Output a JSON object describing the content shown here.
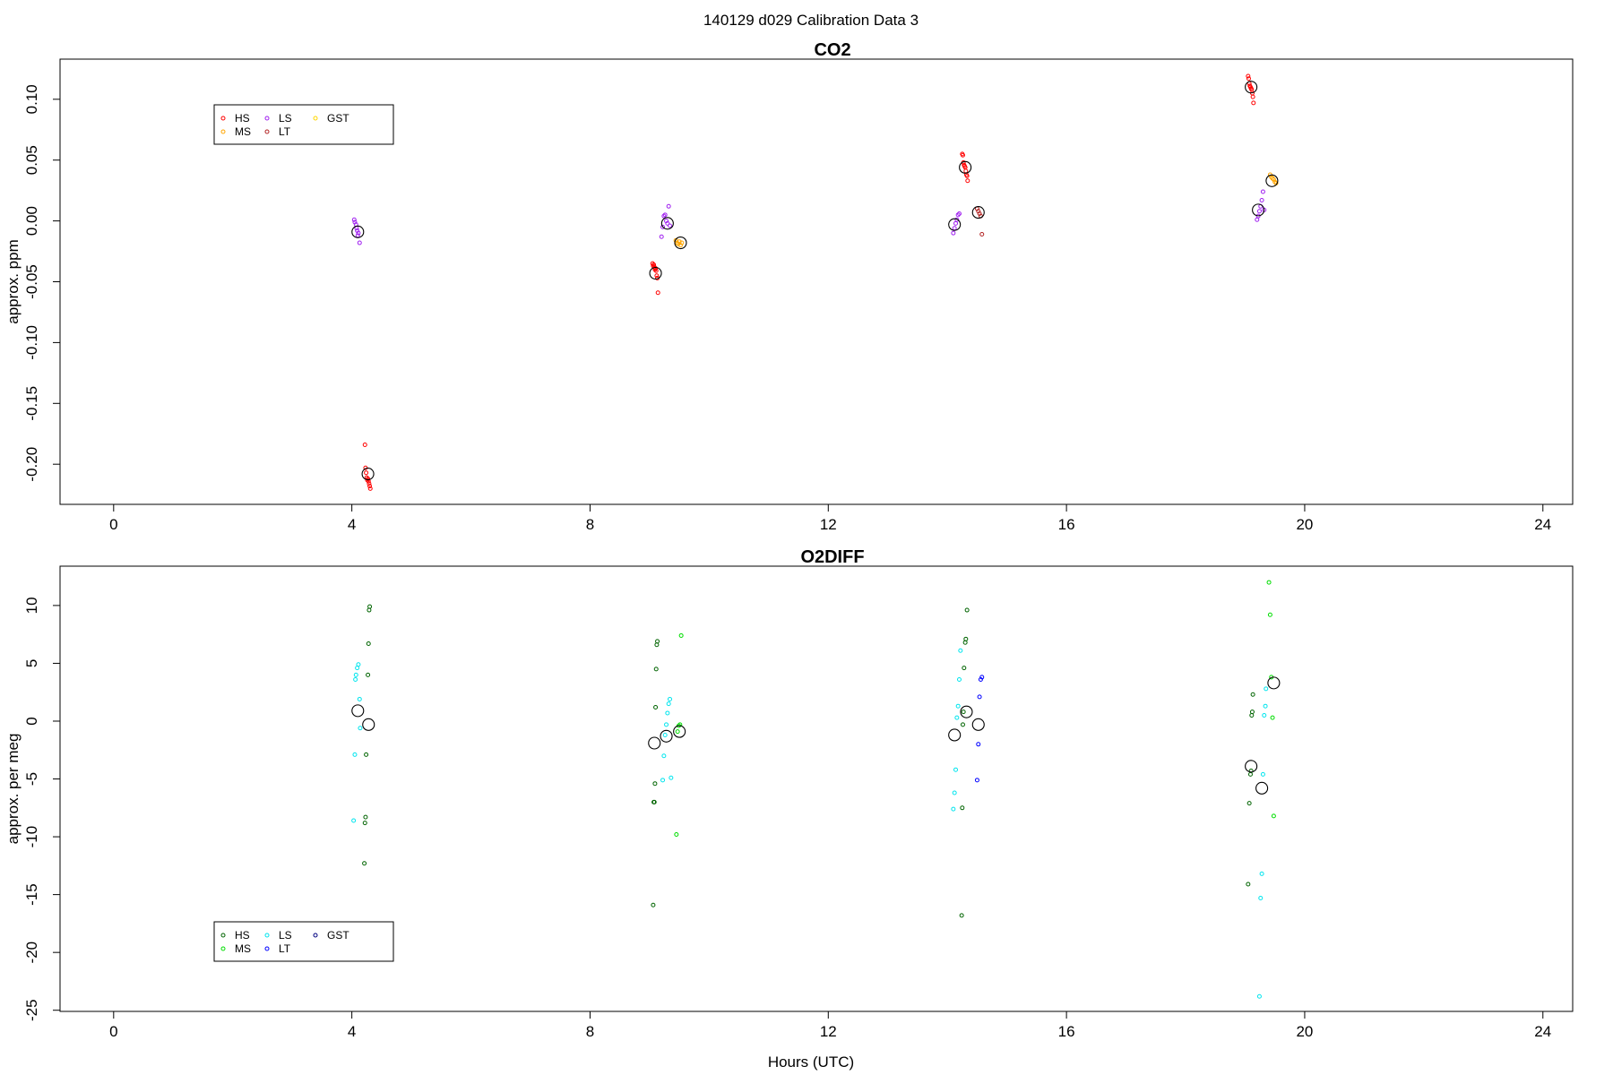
{
  "figure": {
    "main_title": "140129   d029   Calibration Data 3",
    "xlabel": "Hours (UTC)"
  },
  "colors": {
    "HS_co2": "#ff0000",
    "MS_co2": "#ffa500",
    "LS_co2": "#a020f0",
    "LT_co2": "#b22222",
    "GST_co2": "#ffd700",
    "HS_o2": "#006400",
    "MS_o2": "#00dd00",
    "LS_o2": "#00e5ee",
    "LT_o2": "#0000ff",
    "GST_o2": "#000080",
    "mean": "#000000"
  },
  "chart_data": [
    {
      "type": "scatter",
      "title": "CO2",
      "ylabel": "approx. ppm",
      "xlabel": "",
      "xlim": [
        -0.9,
        24.5
      ],
      "ylim": [
        -0.233,
        0.133
      ],
      "xticks": [
        0,
        4,
        8,
        12,
        16,
        20,
        24
      ],
      "yticks": [
        -0.2,
        -0.15,
        -0.1,
        -0.05,
        0.0,
        0.05,
        0.1
      ],
      "ytick_labels": [
        "-0.20",
        "-0.15",
        "-0.10",
        "-0.05",
        "0.00",
        "0.05",
        "0.10"
      ],
      "grid": false,
      "legend": {
        "position": "top-left",
        "ncol": 3,
        "entries": [
          {
            "label": "HS",
            "color": "#ff0000"
          },
          {
            "label": "MS",
            "color": "#ffa500"
          },
          {
            "label": "LS",
            "color": "#a020f0"
          },
          {
            "label": "LT",
            "color": "#b22222"
          },
          {
            "label": "GST",
            "color": "#ffd700"
          }
        ]
      },
      "series": [
        {
          "name": "HS",
          "color": "#ff0000",
          "x": [
            4.22,
            4.23,
            4.24,
            4.25,
            4.26,
            4.27,
            4.28,
            4.29,
            4.3,
            4.31,
            9.05,
            9.06,
            9.07,
            9.08,
            9.09,
            9.1,
            9.11,
            9.12,
            9.13,
            9.14,
            14.25,
            14.26,
            14.27,
            14.28,
            14.29,
            14.3,
            14.31,
            14.32,
            14.33,
            14.34,
            19.05,
            19.06,
            19.07,
            19.08,
            19.09,
            19.1,
            19.11,
            19.12,
            19.13,
            19.14
          ],
          "y": [
            -0.184,
            -0.203,
            -0.207,
            -0.211,
            -0.213,
            -0.212,
            -0.214,
            -0.216,
            -0.218,
            -0.22,
            -0.035,
            -0.037,
            -0.036,
            -0.038,
            -0.04,
            -0.039,
            -0.041,
            -0.045,
            -0.047,
            -0.059,
            0.055,
            0.054,
            0.048,
            0.046,
            0.045,
            0.044,
            0.041,
            0.038,
            0.037,
            0.033,
            0.119,
            0.117,
            0.113,
            0.111,
            0.11,
            0.109,
            0.108,
            0.105,
            0.102,
            0.097
          ]
        },
        {
          "name": "MS",
          "color": "#ffa500",
          "x": [
            9.44,
            9.46,
            9.48,
            9.5,
            9.52,
            9.54,
            19.42,
            19.44,
            19.46,
            19.48,
            19.5,
            19.52
          ],
          "y": [
            -0.016,
            -0.018,
            -0.019,
            -0.017,
            -0.02,
            -0.018,
            0.038,
            0.036,
            0.035,
            0.034,
            0.032,
            0.031
          ]
        },
        {
          "name": "LS",
          "color": "#a020f0",
          "x": [
            4.04,
            4.05,
            4.07,
            4.08,
            4.09,
            4.1,
            4.11,
            4.13,
            9.2,
            9.22,
            9.24,
            9.26,
            9.28,
            9.3,
            9.32,
            9.34,
            14.1,
            14.12,
            14.14,
            14.16,
            14.18,
            14.2,
            19.2,
            19.22,
            19.24,
            19.26,
            19.28,
            19.3,
            19.32
          ],
          "y": [
            0.001,
            -0.001,
            -0.003,
            -0.006,
            -0.008,
            -0.012,
            -0.01,
            -0.018,
            -0.013,
            -0.005,
            0.004,
            0.005,
            0.0,
            -0.002,
            0.012,
            -0.004,
            -0.01,
            -0.006,
            -0.002,
            0.001,
            0.005,
            0.006,
            0.001,
            0.004,
            0.008,
            0.012,
            0.017,
            0.024,
            0.009
          ]
        },
        {
          "name": "LT",
          "color": "#b22222",
          "x": [
            14.5,
            14.52,
            14.54,
            14.56,
            14.58
          ],
          "y": [
            0.01,
            0.008,
            0.006,
            0.004,
            -0.011
          ]
        },
        {
          "name": "GST",
          "color": "#ffd700",
          "x": [],
          "y": []
        },
        {
          "name": "mean",
          "color": "#000000",
          "marker": "large-circle",
          "x": [
            4.1,
            4.27,
            9.1,
            9.3,
            9.52,
            14.12,
            14.3,
            14.52,
            19.1,
            19.22,
            19.45
          ],
          "y": [
            -0.009,
            -0.208,
            -0.043,
            -0.002,
            -0.018,
            -0.003,
            0.044,
            0.007,
            0.11,
            0.009,
            0.033
          ]
        }
      ]
    },
    {
      "type": "scatter",
      "title": "O2DIFF",
      "ylabel": "approx. per meg",
      "xlabel": "Hours (UTC)",
      "xlim": [
        -0.9,
        24.5
      ],
      "ylim": [
        -25.1,
        13.4
      ],
      "xticks": [
        0,
        4,
        8,
        12,
        16,
        20,
        24
      ],
      "yticks": [
        -25,
        -20,
        -15,
        -10,
        -5,
        0,
        5,
        10
      ],
      "ytick_labels": [
        "-25",
        "-20",
        "-15",
        "-10",
        "-5",
        "0",
        "5",
        "10"
      ],
      "grid": false,
      "legend": {
        "position": "bottom-left",
        "ncol": 3,
        "entries": [
          {
            "label": "HS",
            "color": "#006400"
          },
          {
            "label": "MS",
            "color": "#00dd00"
          },
          {
            "label": "LS",
            "color": "#00e5ee"
          },
          {
            "label": "LT",
            "color": "#0000ff"
          },
          {
            "label": "GST",
            "color": "#000080"
          }
        ]
      },
      "series": [
        {
          "name": "HS",
          "color": "#006400",
          "x": [
            4.21,
            4.22,
            4.23,
            4.24,
            4.27,
            4.28,
            4.29,
            4.3,
            9.06,
            9.07,
            9.08,
            9.09,
            9.1,
            9.11,
            9.12,
            9.13,
            14.24,
            14.25,
            14.26,
            14.27,
            14.28,
            14.3,
            14.31,
            14.33,
            19.05,
            19.07,
            19.09,
            19.1,
            19.11,
            19.12,
            19.13
          ],
          "y": [
            -12.3,
            -8.8,
            -8.3,
            -2.9,
            4.0,
            6.7,
            9.6,
            9.9,
            -15.9,
            -7.0,
            -7.0,
            -5.4,
            1.2,
            4.5,
            6.6,
            6.9,
            -16.8,
            -7.5,
            -0.3,
            0.8,
            4.6,
            6.8,
            7.1,
            9.6,
            -14.1,
            -7.1,
            -4.6,
            -4.3,
            0.5,
            0.8,
            2.3
          ]
        },
        {
          "name": "MS",
          "color": "#00dd00",
          "x": [
            9.45,
            9.47,
            9.49,
            9.51,
            9.53,
            19.4,
            19.42,
            19.44,
            19.46,
            19.48
          ],
          "y": [
            -9.8,
            -0.9,
            -0.4,
            -0.3,
            7.4,
            12.0,
            9.2,
            3.8,
            0.3,
            -8.2
          ]
        },
        {
          "name": "LS",
          "color": "#00e5ee",
          "x": [
            4.03,
            4.05,
            4.06,
            4.07,
            4.09,
            4.11,
            4.13,
            4.14,
            9.22,
            9.24,
            9.26,
            9.28,
            9.3,
            9.32,
            9.34,
            9.36,
            14.1,
            14.12,
            14.14,
            14.16,
            14.18,
            14.2,
            14.22,
            19.24,
            19.26,
            19.28,
            19.3,
            19.32,
            19.34,
            19.35
          ],
          "y": [
            -8.6,
            -2.9,
            3.6,
            4.0,
            4.6,
            4.9,
            1.9,
            -0.6,
            -5.1,
            -3.0,
            -1.2,
            -0.3,
            0.7,
            1.5,
            1.9,
            -4.9,
            -7.6,
            -6.2,
            -4.2,
            0.3,
            1.3,
            3.6,
            6.1,
            -23.8,
            -15.3,
            -13.2,
            -4.6,
            0.5,
            1.3,
            2.8
          ]
        },
        {
          "name": "LT",
          "color": "#0000ff",
          "x": [
            14.5,
            14.52,
            14.54,
            14.56,
            14.58
          ],
          "y": [
            -5.1,
            -2.0,
            2.1,
            3.6,
            3.8
          ]
        },
        {
          "name": "GST",
          "color": "#000080",
          "x": [],
          "y": []
        },
        {
          "name": "mean",
          "color": "#000000",
          "marker": "large-circle",
          "x": [
            4.1,
            4.28,
            9.08,
            9.28,
            9.5,
            14.12,
            14.32,
            14.52,
            19.1,
            19.28,
            19.48
          ],
          "y": [
            0.9,
            -0.3,
            -1.9,
            -1.3,
            -0.9,
            -1.2,
            0.8,
            -0.3,
            -3.9,
            -5.8,
            3.3
          ]
        }
      ]
    }
  ]
}
